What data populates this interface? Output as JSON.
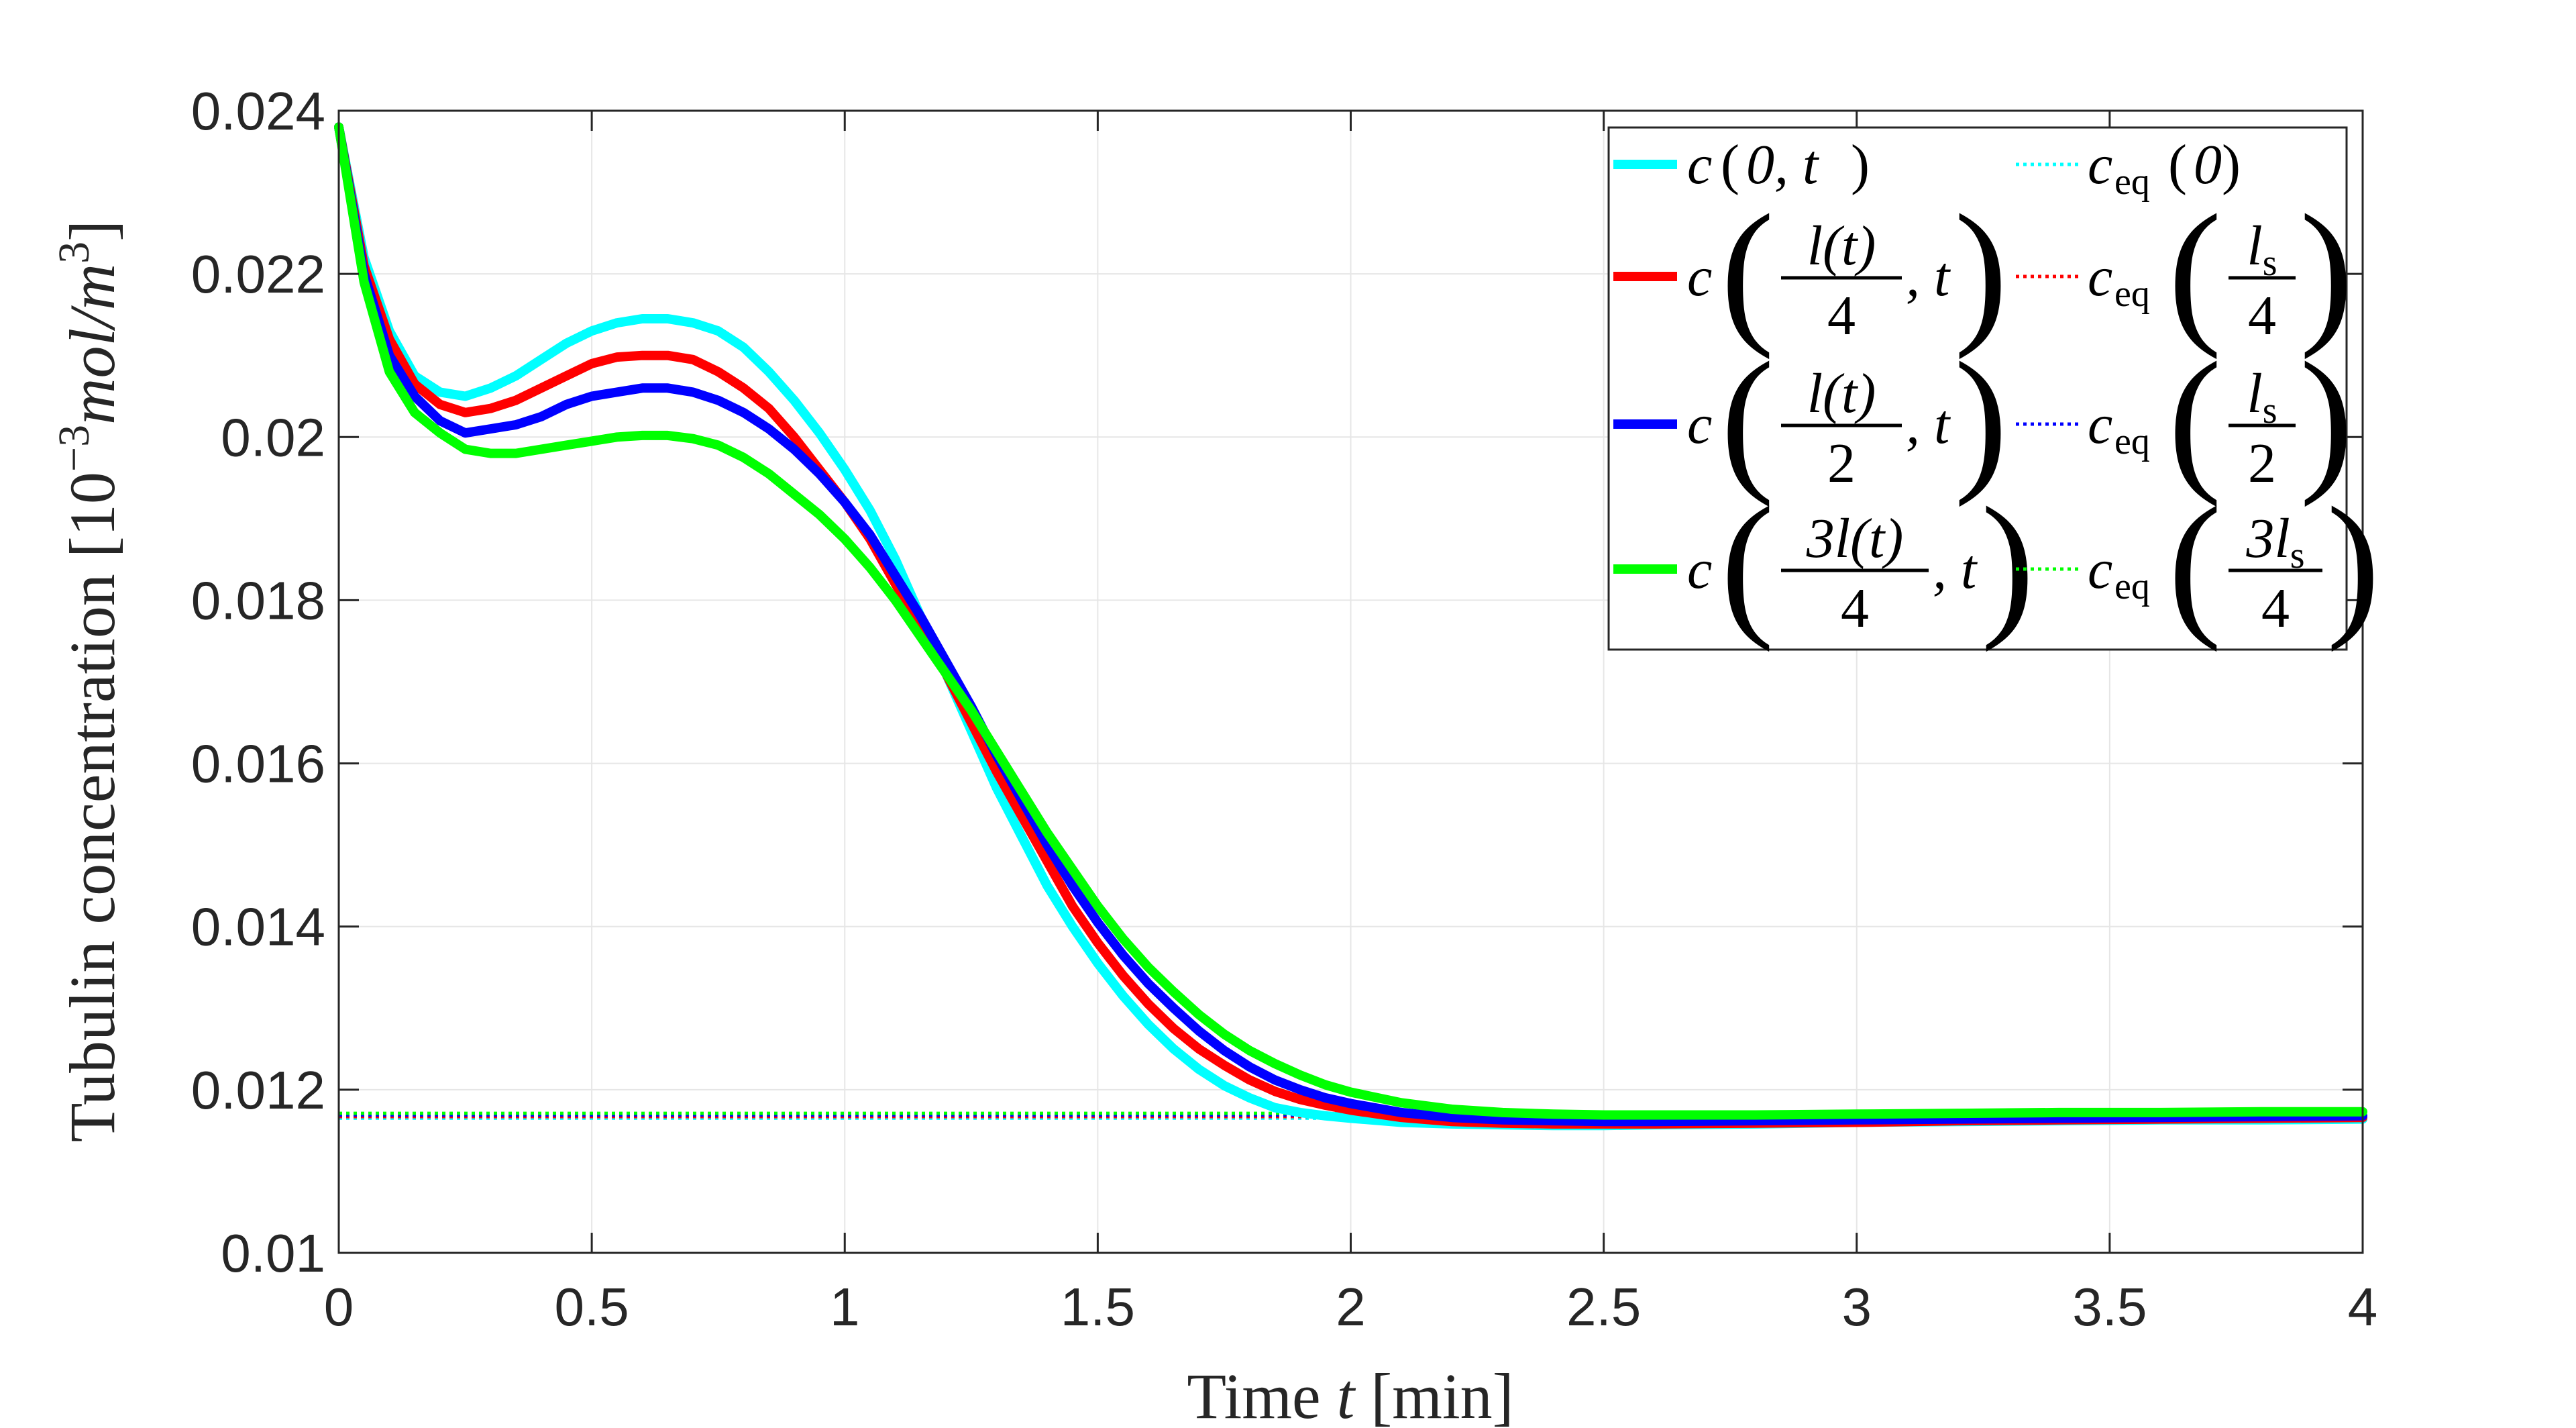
{
  "chart_data": {
    "type": "line",
    "title": "",
    "xlabel_main": "Time ",
    "xlabel_var": "t",
    "xlabel_unit": " [min]",
    "ylabel_main": "Tubulin concentration ",
    "ylabel_unit": "[10",
    "ylabel_exp": "−3",
    "ylabel_unit2": "mol/m",
    "ylabel_exp2": "3",
    "ylabel_close": "]",
    "xlim": [
      0,
      4
    ],
    "ylim": [
      0.01,
      0.024
    ],
    "xticks": [
      0,
      0.5,
      1,
      1.5,
      2,
      2.5,
      3,
      3.5,
      4
    ],
    "xtick_labels": [
      "0",
      "0.5",
      "1",
      "1.5",
      "2",
      "2.5",
      "3",
      "3.5",
      "4"
    ],
    "yticks": [
      0.01,
      0.012,
      0.014,
      0.016,
      0.018,
      0.02,
      0.022,
      0.024
    ],
    "ytick_labels": [
      "0.01",
      "0.012",
      "0.014",
      "0.016",
      "0.018",
      "0.02",
      "0.022",
      "0.024"
    ],
    "grid": true,
    "legend_position": "top-right",
    "x": [
      0,
      0.05,
      0.1,
      0.15,
      0.2,
      0.25,
      0.3,
      0.35,
      0.4,
      0.45,
      0.5,
      0.55,
      0.6,
      0.65,
      0.7,
      0.75,
      0.8,
      0.85,
      0.9,
      0.95,
      1.0,
      1.05,
      1.1,
      1.15,
      1.2,
      1.25,
      1.3,
      1.35,
      1.4,
      1.45,
      1.5,
      1.55,
      1.6,
      1.65,
      1.7,
      1.75,
      1.8,
      1.85,
      1.9,
      1.95,
      2.0,
      2.1,
      2.2,
      2.3,
      2.4,
      2.5,
      2.6,
      2.8,
      3.0,
      3.2,
      3.4,
      3.6,
      3.8,
      4.0
    ],
    "series": [
      {
        "name": "c(0,t)",
        "color": "#00ffff",
        "style": "solid",
        "values": [
          0.0238,
          0.0222,
          0.0213,
          0.02075,
          0.02055,
          0.0205,
          0.0206,
          0.02075,
          0.02095,
          0.02115,
          0.0213,
          0.0214,
          0.02145,
          0.02145,
          0.0214,
          0.0213,
          0.0211,
          0.0208,
          0.02045,
          0.02005,
          0.0196,
          0.0191,
          0.0185,
          0.0178,
          0.0171,
          0.0164,
          0.0157,
          0.0151,
          0.0145,
          0.014,
          0.01355,
          0.01315,
          0.0128,
          0.0125,
          0.01225,
          0.01205,
          0.0119,
          0.01178,
          0.01172,
          0.01168,
          0.01165,
          0.0116,
          0.01158,
          0.01157,
          0.01156,
          0.01156,
          0.01157,
          0.01158,
          0.0116,
          0.01161,
          0.01162,
          0.01163,
          0.01163,
          0.01164
        ]
      },
      {
        "name": "c(l(t)/4,t)",
        "color": "#ff0000",
        "style": "solid",
        "values": [
          0.0238,
          0.0221,
          0.0212,
          0.02065,
          0.0204,
          0.0203,
          0.02035,
          0.02045,
          0.0206,
          0.02075,
          0.0209,
          0.02098,
          0.021,
          0.021,
          0.02095,
          0.0208,
          0.0206,
          0.02035,
          0.02,
          0.0196,
          0.0192,
          0.01875,
          0.0182,
          0.01765,
          0.0171,
          0.0165,
          0.0159,
          0.01535,
          0.0148,
          0.01425,
          0.0138,
          0.0134,
          0.01305,
          0.01275,
          0.0125,
          0.0123,
          0.01212,
          0.01198,
          0.01188,
          0.01181,
          0.01175,
          0.01166,
          0.01161,
          0.01159,
          0.01158,
          0.01158,
          0.01158,
          0.01159,
          0.0116,
          0.01162,
          0.01163,
          0.01164,
          0.01165,
          0.01166
        ]
      },
      {
        "name": "c(l(t)/2,t)",
        "color": "#0000ff",
        "style": "solid",
        "values": [
          0.0238,
          0.022,
          0.021,
          0.0205,
          0.0202,
          0.02005,
          0.0201,
          0.02015,
          0.02025,
          0.0204,
          0.0205,
          0.02055,
          0.0206,
          0.0206,
          0.02055,
          0.02045,
          0.0203,
          0.0201,
          0.01985,
          0.01955,
          0.0192,
          0.0188,
          0.0183,
          0.0178,
          0.01725,
          0.0167,
          0.0161,
          0.01555,
          0.015,
          0.0145,
          0.01405,
          0.01365,
          0.0133,
          0.013,
          0.01272,
          0.01248,
          0.01228,
          0.01212,
          0.012,
          0.0119,
          0.01183,
          0.01172,
          0.01166,
          0.01163,
          0.01162,
          0.01161,
          0.01161,
          0.01162,
          0.01163,
          0.01164,
          0.01165,
          0.01166,
          0.01167,
          0.01168
        ]
      },
      {
        "name": "c(3l(t)/4,t)",
        "color": "#00ff00",
        "style": "solid",
        "values": [
          0.0238,
          0.0219,
          0.0208,
          0.0203,
          0.02005,
          0.01985,
          0.0198,
          0.0198,
          0.01985,
          0.0199,
          0.01995,
          0.02,
          0.02002,
          0.02002,
          0.01998,
          0.0199,
          0.01975,
          0.01955,
          0.0193,
          0.01905,
          0.01875,
          0.0184,
          0.018,
          0.01755,
          0.0171,
          0.01665,
          0.01615,
          0.01565,
          0.01515,
          0.0147,
          0.01425,
          0.01385,
          0.0135,
          0.0132,
          0.01292,
          0.01268,
          0.01248,
          0.01232,
          0.01218,
          0.01206,
          0.01197,
          0.01184,
          0.01176,
          0.01172,
          0.0117,
          0.01169,
          0.01169,
          0.01169,
          0.0117,
          0.01171,
          0.01172,
          0.01172,
          0.01173,
          0.01173
        ]
      },
      {
        "name": "c_eq(0)",
        "color": "#00ffff",
        "style": "dotted",
        "constant": 0.01165
      },
      {
        "name": "c_eq(l_s/4)",
        "color": "#ff0000",
        "style": "dotted",
        "constant": 0.01167
      },
      {
        "name": "c_eq(l_s/2)",
        "color": "#0000ff",
        "style": "dotted",
        "constant": 0.01169
      },
      {
        "name": "c_eq(3l_s/4)",
        "color": "#00ff00",
        "style": "dotted",
        "constant": 0.01171
      }
    ],
    "legend": {
      "left": [
        {
          "color": "#00ffff",
          "c": "c",
          "open": "(",
          "arg": "0, t",
          "close": ")"
        },
        {
          "color": "#ff0000",
          "c": "c",
          "num": "l(t)",
          "den": "4",
          "tail": ", t"
        },
        {
          "color": "#0000ff",
          "c": "c",
          "num": "l(t)",
          "den": "2",
          "tail": ", t"
        },
        {
          "color": "#00ff00",
          "c": "c",
          "num": "3l(t)",
          "den": "4",
          "tail": ", t"
        }
      ],
      "right": [
        {
          "color": "#00ffff",
          "c": "c",
          "sub": "eq",
          "open": "(",
          "arg": "0",
          "close": ")"
        },
        {
          "color": "#ff0000",
          "c": "c",
          "sub": "eq",
          "num": "l",
          "num_sub": "s",
          "den": "4"
        },
        {
          "color": "#0000ff",
          "c": "c",
          "sub": "eq",
          "num": "l",
          "num_sub": "s",
          "den": "2"
        },
        {
          "color": "#00ff00",
          "c": "c",
          "sub": "eq",
          "num": "3l",
          "num_sub": "s",
          "den": "4"
        }
      ]
    }
  }
}
